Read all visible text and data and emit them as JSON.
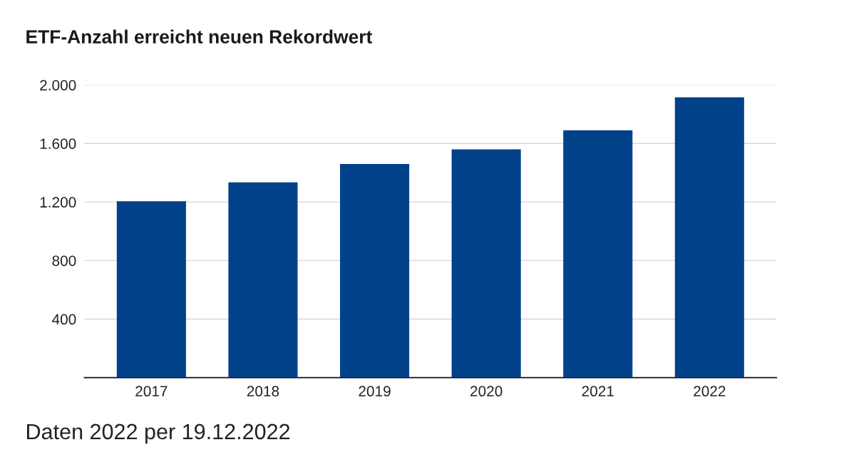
{
  "chart_data": {
    "type": "bar",
    "title": "ETF-Anzahl erreicht neuen Rekordwert",
    "categories": [
      "2017",
      "2018",
      "2019",
      "2020",
      "2021",
      "2022"
    ],
    "values": [
      1205,
      1335,
      1460,
      1560,
      1690,
      1915
    ],
    "color": "#00418a",
    "ylim": [
      0,
      2000
    ],
    "yticks": [
      {
        "value": 400,
        "label": "400"
      },
      {
        "value": 800,
        "label": "800"
      },
      {
        "value": 1200,
        "label": "1.200"
      },
      {
        "value": 1600,
        "label": "1.600"
      },
      {
        "value": 2000,
        "label": "2.000"
      }
    ],
    "grid": "y",
    "annotations": [
      "Daten 2022 per 19.12.2022"
    ]
  }
}
